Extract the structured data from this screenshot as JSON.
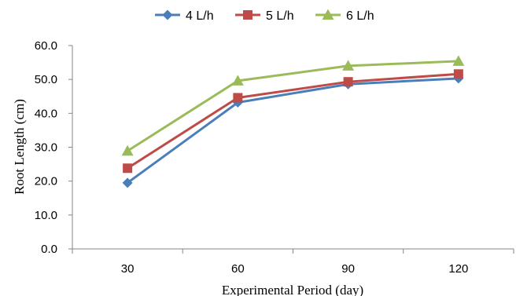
{
  "chart_data": {
    "type": "line",
    "categories": [
      "30",
      "60",
      "90",
      "120"
    ],
    "series": [
      {
        "name": "4 L/h",
        "values": [
          19.5,
          43.2,
          48.6,
          50.3
        ],
        "color": "#4a7ebb",
        "marker": "diamond"
      },
      {
        "name": "5 L/h",
        "values": [
          23.8,
          44.6,
          49.3,
          51.6
        ],
        "color": "#be4b48",
        "marker": "square"
      },
      {
        "name": "6 L/h",
        "values": [
          28.9,
          49.6,
          54.0,
          55.4
        ],
        "color": "#9bbb59",
        "marker": "triangle"
      }
    ],
    "xlabel": "Experimental Period (day)",
    "ylabel": "Root Length (cm)",
    "ylim": [
      0,
      60
    ],
    "yticks": [
      "0.0",
      "10.0",
      "20.0",
      "30.0",
      "40.0",
      "50.0",
      "60.0"
    ],
    "legend_position": "top",
    "grid": false
  }
}
